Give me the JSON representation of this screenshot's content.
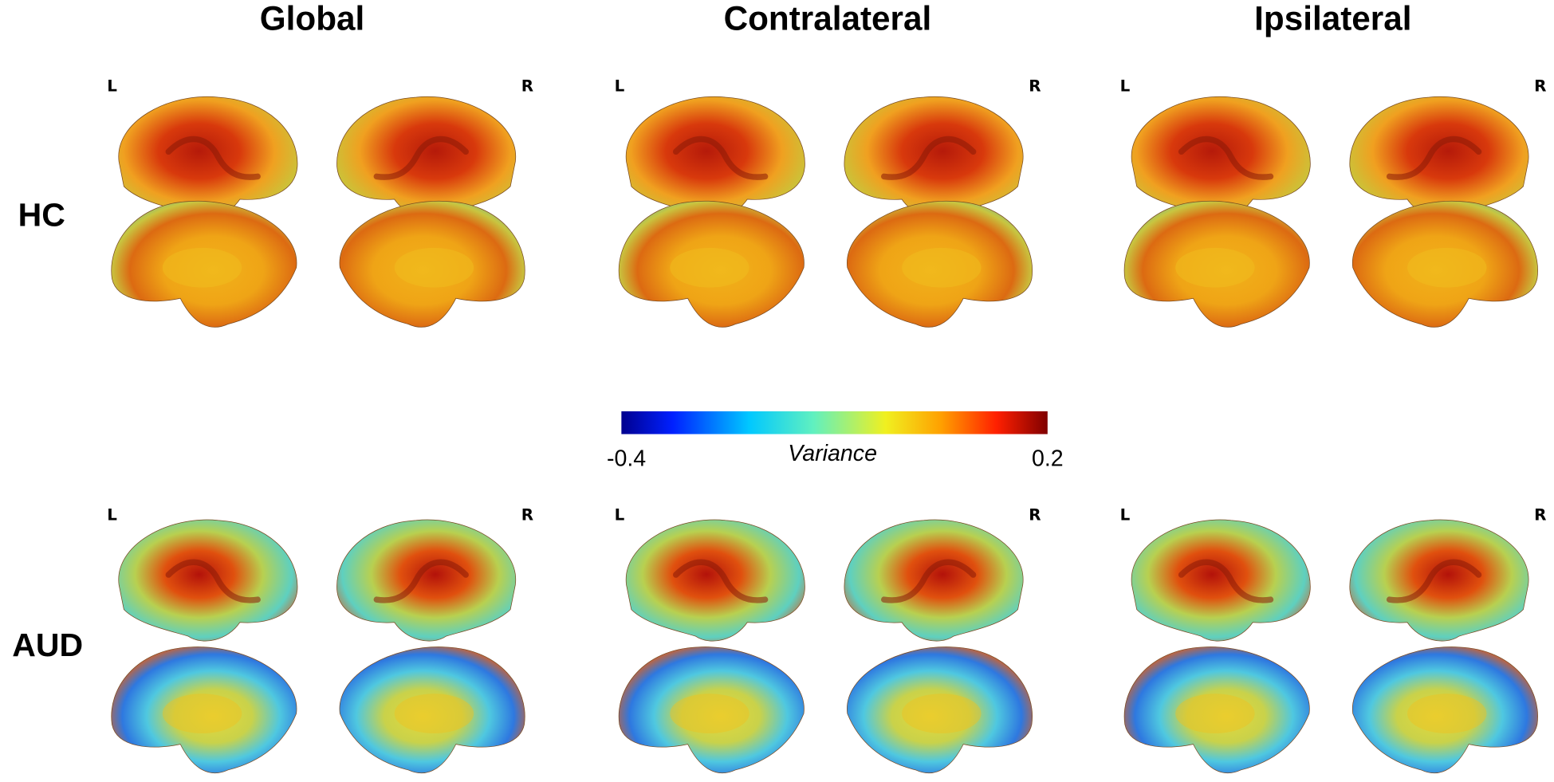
{
  "columns": [
    "Global",
    "Contralateral",
    "Ipsilateral"
  ],
  "rows": [
    "HC",
    "AUD"
  ],
  "hemispheres": [
    "L",
    "R"
  ],
  "colorbar": {
    "label": "Variance",
    "min": -0.4,
    "max": 0.2
  }
}
